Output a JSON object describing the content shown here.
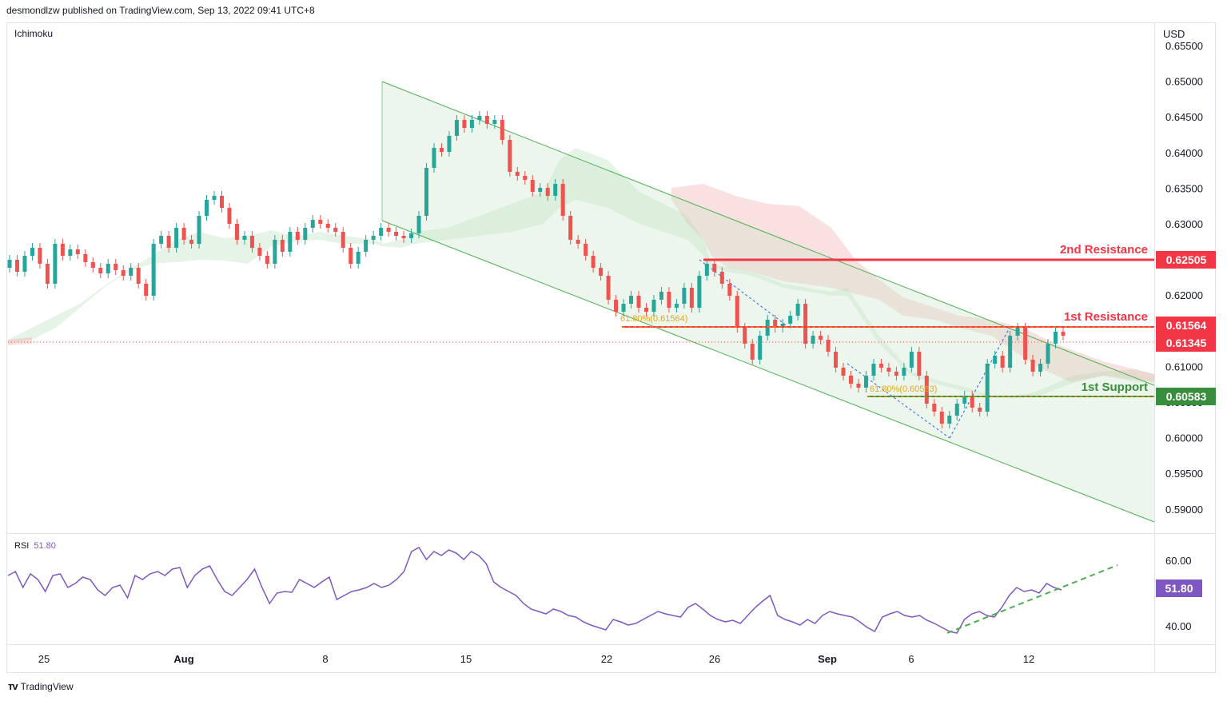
{
  "header": {
    "publisher": "desmondlzw published on TradingView.com, Sep 13, 2022 09:41 UTC+8"
  },
  "indicator": {
    "name": "Ichimoku"
  },
  "rsi": {
    "label": "RSI",
    "value": "51.80",
    "color": "#7e57c2"
  },
  "currency": "USD",
  "footer": {
    "brand": "TradingView"
  },
  "price_axis": {
    "ticks": [
      "0.65500",
      "0.65000",
      "0.64500",
      "0.64000",
      "0.63500",
      "0.63000",
      "0.62500",
      "0.62000",
      "0.61500",
      "0.61000",
      "0.60500",
      "0.60000",
      "0.59500",
      "0.59000"
    ]
  },
  "rsi_axis": {
    "ticks": [
      "60.00",
      "40.00"
    ]
  },
  "time_axis": {
    "labels": [
      "25",
      "Aug",
      "8",
      "15",
      "22",
      "26",
      "Sep",
      "6",
      "12"
    ]
  },
  "levels": {
    "second_resistance": {
      "label": "2nd Resistance",
      "price": "0.62505",
      "color": "#f23645"
    },
    "first_resistance": {
      "label": "1st Resistance",
      "price": "0.61564",
      "color": "#f23645"
    },
    "current_price": {
      "price": "0.61345",
      "color": "#f23645"
    },
    "first_support": {
      "label": "1st Support",
      "price": "0.60583",
      "color": "#388e3c"
    }
  },
  "fib_labels": {
    "upper": "61.80%(0.61564)",
    "lower": "61.80%(0.60583)"
  },
  "colors": {
    "bull": "#26a69a",
    "bear": "#ef5350",
    "channel": "#4caf50",
    "rsi_trend": "#4caf50"
  }
}
